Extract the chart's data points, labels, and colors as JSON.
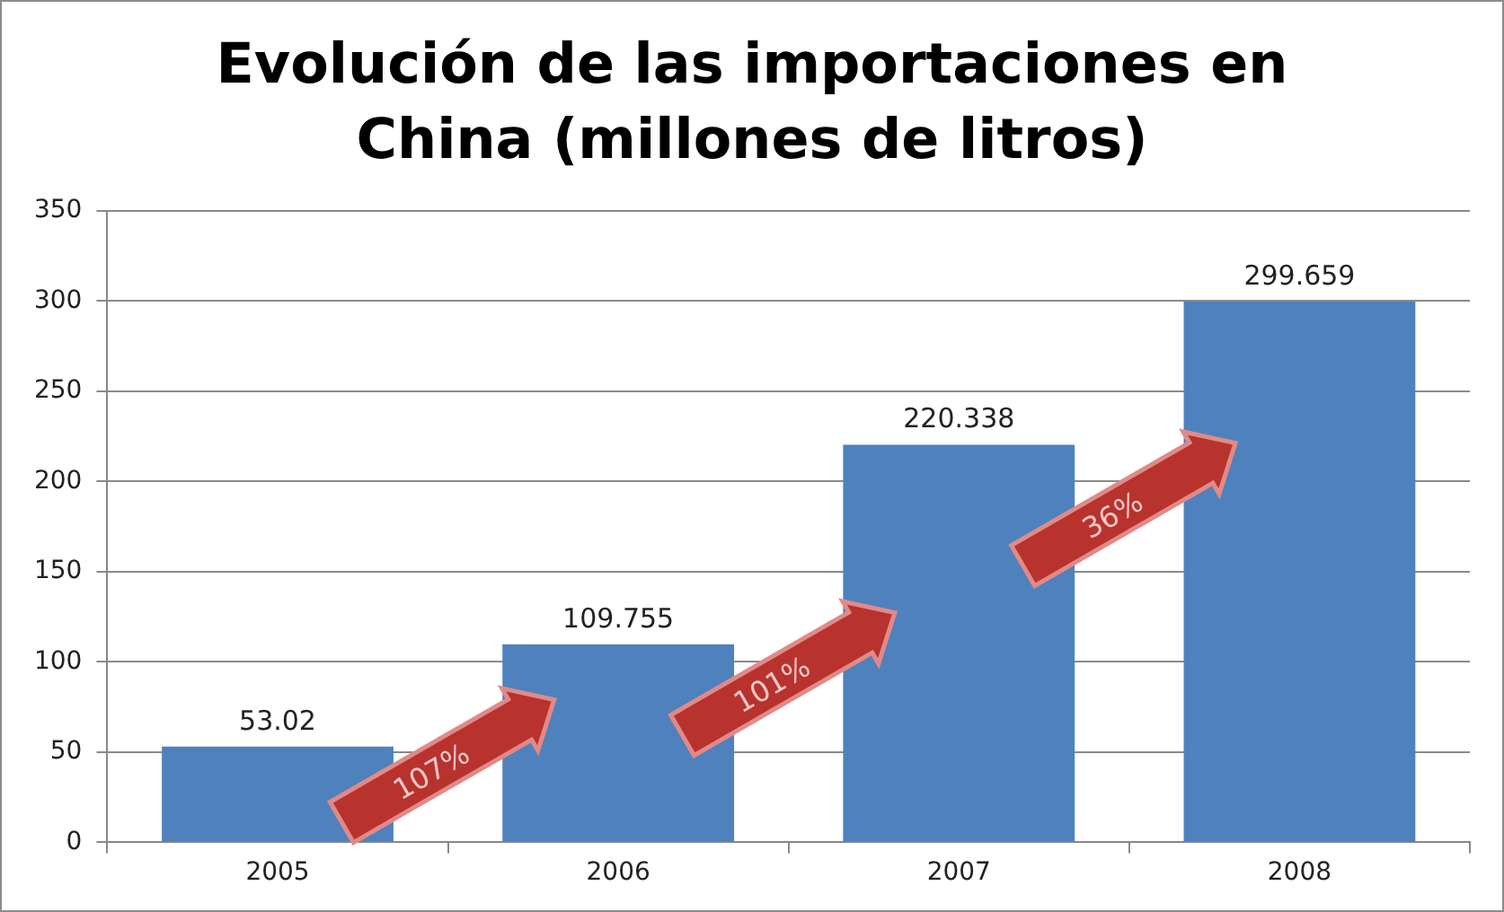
{
  "chart_data": {
    "type": "bar",
    "title": "Evolución de las importaciones en China (millones de litros)",
    "categories": [
      "2005",
      "2006",
      "2007",
      "2008"
    ],
    "values": [
      53.02,
      109.755,
      220.338,
      299.659
    ],
    "color": "#4f81bd",
    "ylim": [
      0,
      350
    ],
    "yticks": [
      0,
      50,
      100,
      150,
      200,
      250,
      300,
      350
    ],
    "grid": "y",
    "data_labels": true,
    "annotations": [
      "107%",
      "101%",
      "36%"
    ]
  }
}
